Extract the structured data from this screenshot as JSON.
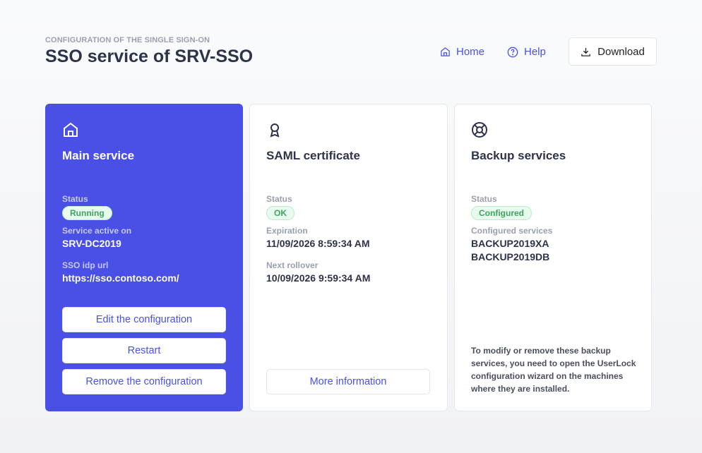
{
  "header": {
    "subtitle": "CONFIGURATION OF THE SINGLE SIGN-ON",
    "title": "SSO service of SRV-SSO",
    "home": "Home",
    "help": "Help",
    "download": "Download"
  },
  "main": {
    "title": "Main service",
    "status_label": "Status",
    "status": "Running",
    "active_label": "Service active on",
    "active": "SRV-DC2019",
    "url_label": "SSO idp url",
    "url": "https://sso.contoso.com/",
    "edit": "Edit the configuration",
    "restart": "Restart",
    "remove": "Remove the configuration"
  },
  "saml": {
    "title": "SAML certificate",
    "status_label": "Status",
    "status": "OK",
    "exp_label": "Expiration",
    "exp": "11/09/2026 8:59:34 AM",
    "roll_label": "Next rollover",
    "roll": "10/09/2026 9:59:34 AM",
    "more": "More information"
  },
  "backup": {
    "title": "Backup services",
    "status_label": "Status",
    "status": "Configured",
    "svc_label": "Configured services",
    "services": [
      "BACKUP2019XA",
      "BACKUP2019DB"
    ],
    "note": "To modify or remove these backup services, you need to open the UserLock configuration wizard on the machines where they are installed."
  },
  "colors": {
    "accent": "#4a50e6",
    "success": "#3ea35e"
  }
}
